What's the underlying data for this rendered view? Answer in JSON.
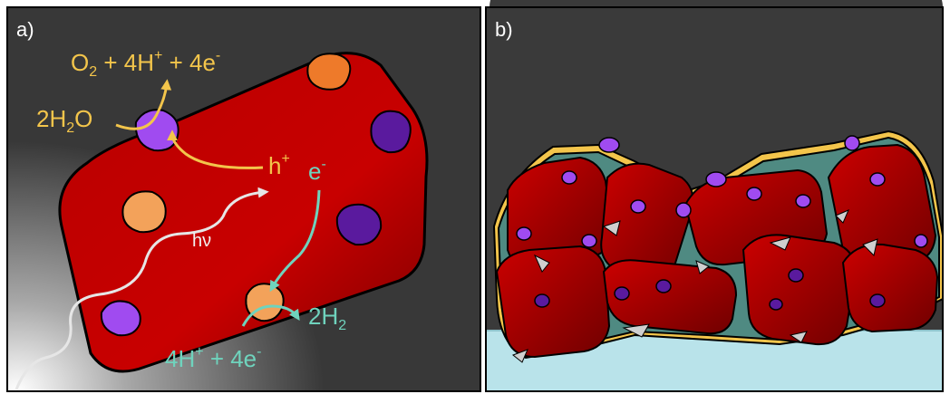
{
  "panel_a": {
    "label": "a)",
    "oxidation_products": [
      "O",
      "2",
      " + 4H",
      "+",
      " + 4e",
      "-"
    ],
    "water": [
      "2H",
      "2",
      "O"
    ],
    "hole": [
      "h",
      "+"
    ],
    "electron": [
      "e",
      "-"
    ],
    "photon": "hν",
    "reduction_reactants": [
      "4H",
      "+",
      " + 4e",
      "-"
    ],
    "hydrogen": [
      "2H",
      "2"
    ]
  },
  "panel_b": {
    "label": "b)"
  },
  "colors": {
    "background": "#3a3a3a",
    "particle_red": "#c40000",
    "oxidation_yellow": "#f3c54b",
    "reduction_teal": "#6fd3bd",
    "cocatalyst_purple": "#a04bf0",
    "cocatalyst_dark_purple": "#5a1a9e",
    "cocatalyst_orange": "#ee7a2a",
    "substrate_blue": "#b9e3ea"
  }
}
